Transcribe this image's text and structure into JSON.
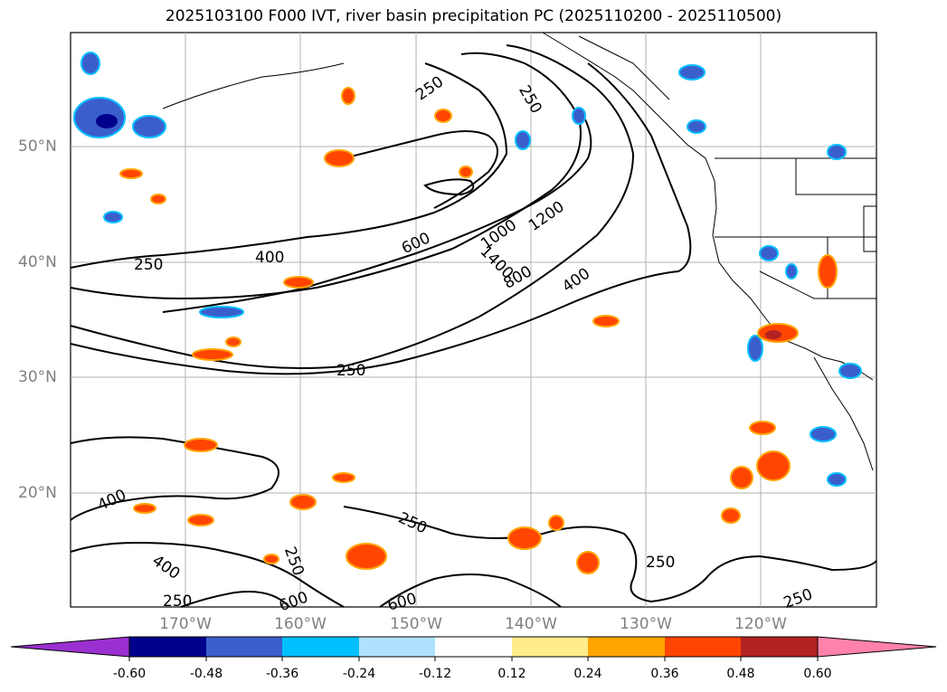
{
  "title": "2025103100 F000 IVT, river basin precipitation PC (2025110200 - 2025110500)",
  "lat_labels": [
    "50°N",
    "40°N",
    "30°N",
    "20°N"
  ],
  "lon_labels": [
    "170°W",
    "160°W",
    "150°W",
    "140°W",
    "130°W",
    "120°W"
  ],
  "contour_labels": [
    "250",
    "250",
    "250",
    "250",
    "250",
    "250",
    "250",
    "400",
    "400",
    "400",
    "400",
    "600",
    "600",
    "600",
    "800",
    "1000",
    "1200",
    "1400",
    "250",
    "250"
  ],
  "colorbar": {
    "ticks": [
      "-0.60",
      "-0.48",
      "-0.36",
      "-0.24",
      "-0.12",
      "0.12",
      "0.24",
      "0.36",
      "0.48",
      "0.60"
    ],
    "colors": [
      "#9b30d0",
      "#00008b",
      "#3a5fcd",
      "#00bfff",
      "#b0e2ff",
      "#ffffff",
      "#ffec8b",
      "#ffa500",
      "#ff4500",
      "#b22222",
      "#ff82ab"
    ]
  },
  "colors": {
    "land_border": "#000000",
    "grid": "#b0b0b0",
    "contour": "#000000"
  }
}
